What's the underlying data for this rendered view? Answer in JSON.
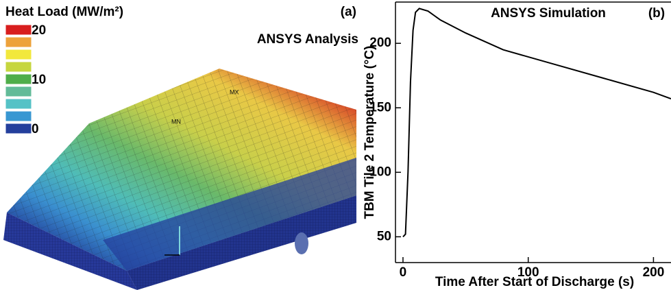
{
  "chart_data": [
    {
      "type": "contour",
      "panel_label": "(a)",
      "title": "ANSYS Analysis",
      "colorbar_title": "Heat Load (MW/m²)",
      "colorbar": {
        "colors": [
          "#d81e1e",
          "#eda23a",
          "#f2e83c",
          "#c6d63e",
          "#4fae4a",
          "#62bb98",
          "#55c2c6",
          "#3897d2",
          "#243f9c"
        ],
        "labels": [
          20,
          null,
          null,
          null,
          10,
          null,
          null,
          null,
          0
        ]
      },
      "annotations": [
        "MX",
        "MN"
      ]
    },
    {
      "type": "line",
      "panel_label": "(b)",
      "title": "ANSYS Simulation",
      "x_label": "Time After Start of Discharge (s)",
      "y_label": "TBM Tile 2 Temperature (°C)",
      "x": [
        0,
        2,
        4,
        6,
        8,
        10,
        13,
        20,
        30,
        50,
        80,
        120,
        160,
        200,
        214
      ],
      "values": [
        50,
        52,
        100,
        170,
        210,
        224,
        227,
        225,
        218,
        208,
        195,
        184,
        173,
        162,
        157
      ],
      "color": "#000000",
      "xlim": [
        -6,
        214
      ],
      "ylim": [
        30,
        232
      ],
      "xticks": [
        0,
        100,
        200
      ],
      "yticks": [
        50,
        100,
        150,
        200
      ]
    }
  ]
}
